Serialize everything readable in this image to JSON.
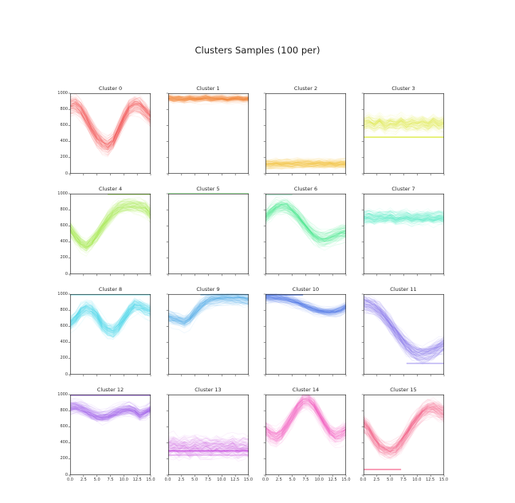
{
  "figure": {
    "title": "Clusters Samples (100 per)",
    "background": "#ffffff",
    "grid_layout": "4x4",
    "spine_color": "#2b2b2b",
    "tick_color": "#333333"
  },
  "axes": {
    "x_tick_labels": [
      "0.0",
      "2.5",
      "5.0",
      "7.5",
      "10.0",
      "12.5",
      "15.0"
    ],
    "y_tick_labels": [
      "0",
      "200",
      "400",
      "600",
      "800",
      "1000"
    ],
    "x_range": [
      0,
      15
    ],
    "y_range": [
      0,
      1000
    ],
    "x_labels_on": "bottom-row-only",
    "y_labels_on": "left-column-only"
  },
  "chart_data": [
    {
      "type": "line",
      "title": "Cluster 0",
      "color": "#ef4448",
      "n_samples": 100,
      "x_range": [
        0,
        15
      ],
      "ylim": [
        0,
        1000
      ],
      "spread": 150,
      "mean": [
        860,
        870,
        810,
        700,
        570,
        460,
        390,
        350,
        410,
        550,
        700,
        820,
        860,
        850,
        780,
        700
      ],
      "flat_lines": []
    },
    {
      "type": "line",
      "title": "Cluster 1",
      "color": "#f97c26",
      "n_samples": 100,
      "x_range": [
        0,
        15
      ],
      "ylim": [
        0,
        1000
      ],
      "spread": 65,
      "mean": [
        940,
        925,
        930,
        920,
        935,
        925,
        930,
        940,
        925,
        930,
        935,
        920,
        930,
        935,
        925,
        930
      ],
      "flat_lines": []
    },
    {
      "type": "line",
      "title": "Cluster 2",
      "color": "#f2b722",
      "n_samples": 100,
      "x_range": [
        0,
        15
      ],
      "ylim": [
        0,
        1000
      ],
      "spread": 85,
      "mean": [
        120,
        115,
        125,
        118,
        122,
        116,
        124,
        119,
        121,
        117,
        123,
        118,
        122,
        116,
        124,
        120
      ],
      "flat_lines": []
    },
    {
      "type": "line",
      "title": "Cluster 3",
      "color": "#d9e832",
      "n_samples": 100,
      "x_range": [
        0,
        15
      ],
      "ylim": [
        0,
        1000
      ],
      "spread": 140,
      "mean": [
        620,
        640,
        610,
        650,
        600,
        630,
        615,
        645,
        605,
        635,
        620,
        640,
        610,
        650,
        615,
        630
      ],
      "flat_lines": [
        {
          "y": 455,
          "x0": 0,
          "x1": 15,
          "alpha": 0.9
        }
      ]
    },
    {
      "type": "line",
      "title": "Cluster 4",
      "color": "#97e838",
      "n_samples": 100,
      "x_range": [
        0,
        15
      ],
      "ylim": [
        0,
        1000
      ],
      "spread": 150,
      "mean": [
        560,
        460,
        380,
        340,
        400,
        480,
        580,
        680,
        760,
        820,
        845,
        855,
        855,
        845,
        820,
        750
      ],
      "flat_lines": [
        {
          "y": 1000,
          "x0": 7,
          "x1": 15,
          "alpha": 0.85
        }
      ]
    },
    {
      "type": "line",
      "title": "Cluster 5",
      "color": "#4de94d",
      "n_samples": 100,
      "x_range": [
        0,
        15
      ],
      "ylim": [
        0,
        1000
      ],
      "spread": 0,
      "mean": [
        1000,
        1000,
        1000,
        1000,
        1000,
        1000,
        1000,
        1000,
        1000,
        1000,
        1000,
        1000,
        1000,
        1000,
        1000,
        1000
      ],
      "flat_lines": []
    },
    {
      "type": "line",
      "title": "Cluster 6",
      "color": "#3ce98a",
      "n_samples": 100,
      "x_range": [
        0,
        15
      ],
      "ylim": [
        0,
        1000
      ],
      "spread": 130,
      "mean": [
        720,
        780,
        830,
        850,
        840,
        790,
        720,
        640,
        560,
        490,
        445,
        430,
        450,
        480,
        510,
        530
      ],
      "flat_lines": [
        {
          "y": 985,
          "x0": 0,
          "x1": 5,
          "alpha": 0.35
        }
      ]
    },
    {
      "type": "line",
      "title": "Cluster 7",
      "color": "#35e6c2",
      "n_samples": 100,
      "x_range": [
        0,
        15
      ],
      "ylim": [
        0,
        1000
      ],
      "spread": 120,
      "mean": [
        700,
        710,
        690,
        705,
        695,
        715,
        685,
        700,
        710,
        690,
        705,
        695,
        710,
        690,
        705,
        700
      ],
      "flat_lines": []
    },
    {
      "type": "line",
      "title": "Cluster 8",
      "color": "#2fd8e8",
      "n_samples": 100,
      "x_range": [
        0,
        15
      ],
      "ylim": [
        0,
        1000
      ],
      "spread": 140,
      "mean": [
        640,
        700,
        790,
        830,
        810,
        730,
        620,
        560,
        540,
        600,
        700,
        800,
        870,
        860,
        820,
        800
      ],
      "flat_lines": [
        {
          "y": 1000,
          "x0": 0,
          "x1": 15,
          "alpha": 0.7
        }
      ]
    },
    {
      "type": "line",
      "title": "Cluster 9",
      "color": "#3fa8ee",
      "n_samples": 100,
      "x_range": [
        0,
        15
      ],
      "ylim": [
        0,
        1000
      ],
      "spread": 110,
      "mean": [
        720,
        700,
        680,
        660,
        700,
        780,
        850,
        900,
        930,
        940,
        950,
        950,
        950,
        950,
        940,
        930
      ],
      "flat_lines": [
        {
          "y": 1000,
          "x0": 6,
          "x1": 15,
          "alpha": 0.8
        }
      ]
    },
    {
      "type": "line",
      "title": "Cluster 10",
      "color": "#4470e8",
      "n_samples": 100,
      "x_range": [
        0,
        15
      ],
      "ylim": [
        0,
        1000
      ],
      "spread": 85,
      "mean": [
        960,
        958,
        952,
        944,
        934,
        915,
        893,
        865,
        838,
        812,
        792,
        780,
        776,
        782,
        802,
        840
      ],
      "flat_lines": [
        {
          "y": 990,
          "x0": 0,
          "x1": 7,
          "alpha": 0.8
        }
      ]
    },
    {
      "type": "line",
      "title": "Cluster 11",
      "color": "#6f5de8",
      "n_samples": 100,
      "x_range": [
        0,
        15
      ],
      "ylim": [
        0,
        1000
      ],
      "spread": 160,
      "mean": [
        880,
        868,
        840,
        785,
        705,
        615,
        525,
        435,
        355,
        295,
        262,
        252,
        262,
        292,
        332,
        372
      ],
      "flat_lines": [
        {
          "y": 140,
          "x0": 8,
          "x1": 15,
          "alpha": 0.55
        }
      ]
    },
    {
      "type": "line",
      "title": "Cluster 12",
      "color": "#8f45e8",
      "n_samples": 100,
      "x_range": [
        0,
        15
      ],
      "ylim": [
        0,
        1000
      ],
      "spread": 110,
      "mean": [
        845,
        852,
        832,
        802,
        762,
        732,
        722,
        732,
        762,
        792,
        812,
        822,
        802,
        752,
        782,
        822
      ],
      "flat_lines": [
        {
          "y": 1000,
          "x0": 0,
          "x1": 15,
          "alpha": 0.9
        }
      ]
    },
    {
      "type": "line",
      "title": "Cluster 13",
      "color": "#c94fe0",
      "n_samples": 100,
      "x_range": [
        0,
        15
      ],
      "ylim": [
        0,
        1000
      ],
      "spread": 180,
      "mean": [
        350,
        370,
        340,
        360,
        330,
        365,
        345,
        355,
        335,
        360,
        350,
        340,
        365,
        335,
        355,
        345
      ],
      "flat_lines": [
        {
          "y": 300,
          "x0": 0,
          "x1": 15,
          "alpha": 0.9
        },
        {
          "y": 248,
          "x0": 0,
          "x1": 15,
          "alpha": 0.45
        }
      ]
    },
    {
      "type": "line",
      "title": "Cluster 14",
      "color": "#ef4fbe",
      "n_samples": 100,
      "x_range": [
        0,
        15
      ],
      "ylim": [
        0,
        1000
      ],
      "spread": 140,
      "mean": [
        560,
        500,
        470,
        520,
        620,
        730,
        840,
        920,
        930,
        870,
        760,
        640,
        540,
        490,
        510,
        560
      ],
      "flat_lines": []
    },
    {
      "type": "line",
      "title": "Cluster 15",
      "color": "#f4527f",
      "n_samples": 100,
      "x_range": [
        0,
        15
      ],
      "ylim": [
        0,
        1000
      ],
      "spread": 150,
      "mean": [
        640,
        560,
        450,
        360,
        310,
        300,
        330,
        400,
        500,
        610,
        700,
        780,
        820,
        830,
        800,
        760
      ],
      "flat_lines": [
        {
          "y": 70,
          "x0": 0,
          "x1": 7,
          "alpha": 0.8
        }
      ]
    }
  ]
}
